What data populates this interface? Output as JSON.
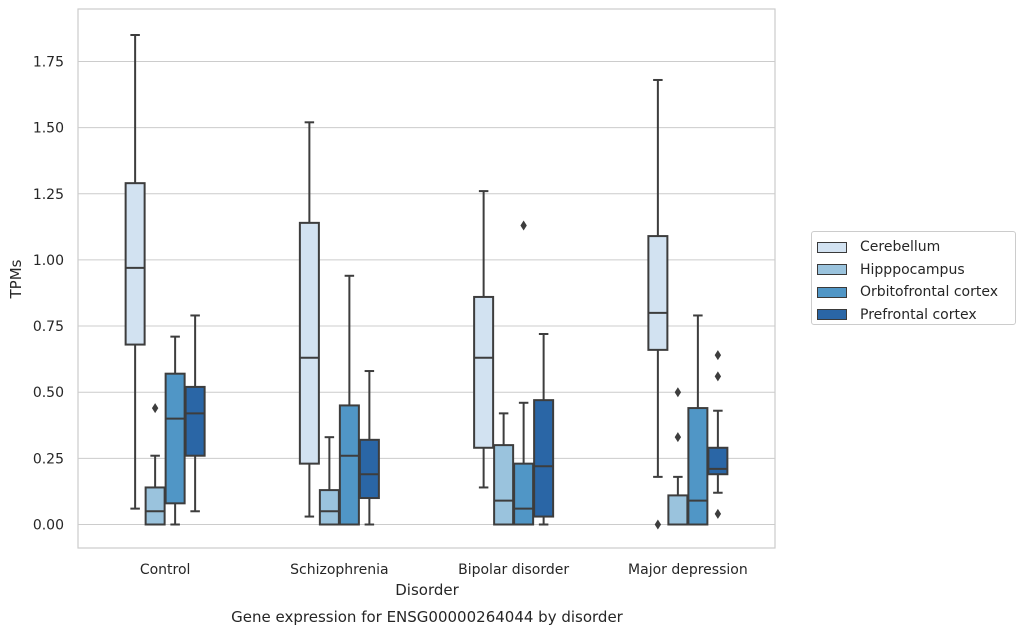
{
  "chart_data": {
    "type": "boxplot",
    "title": "Gene expression for ENSG00000264044 by disorder",
    "xlabel": "Disorder",
    "ylabel": "TPMs",
    "ylim": [
      -0.09,
      1.95
    ],
    "yticks": [
      0.0,
      0.25,
      0.5,
      0.75,
      1.0,
      1.25,
      1.5,
      1.75
    ],
    "ytick_labels": [
      "0.00",
      "0.25",
      "0.50",
      "0.75",
      "1.00",
      "1.25",
      "1.50",
      "1.75"
    ],
    "grid": "horizontal",
    "legend_position": "right",
    "categories": [
      "Control",
      "Schizophrenia",
      "Bipolar disorder",
      "Major depression"
    ],
    "series": [
      {
        "name": "Cerebellum",
        "color": "#d2e2f1",
        "boxes": [
          {
            "whislo": 0.06,
            "q1": 0.68,
            "med": 0.97,
            "q3": 1.29,
            "whishi": 1.85,
            "fliers": []
          },
          {
            "whislo": 0.03,
            "q1": 0.23,
            "med": 0.63,
            "q3": 1.14,
            "whishi": 1.52,
            "fliers": []
          },
          {
            "whislo": 0.14,
            "q1": 0.29,
            "med": 0.63,
            "q3": 0.86,
            "whishi": 1.26,
            "fliers": []
          },
          {
            "whislo": 0.18,
            "q1": 0.66,
            "med": 0.8,
            "q3": 1.09,
            "whishi": 1.68,
            "fliers": [
              0.0
            ]
          }
        ]
      },
      {
        "name": "Hipppocampus",
        "color": "#9ac3dd",
        "boxes": [
          {
            "whislo": 0.0,
            "q1": 0.0,
            "med": 0.05,
            "q3": 0.14,
            "whishi": 0.26,
            "fliers": [
              0.44
            ]
          },
          {
            "whislo": 0.0,
            "q1": 0.0,
            "med": 0.05,
            "q3": 0.13,
            "whishi": 0.33,
            "fliers": []
          },
          {
            "whislo": 0.0,
            "q1": 0.0,
            "med": 0.09,
            "q3": 0.3,
            "whishi": 0.42,
            "fliers": []
          },
          {
            "whislo": 0.0,
            "q1": 0.0,
            "med": 0.0,
            "q3": 0.11,
            "whishi": 0.18,
            "fliers": [
              0.33,
              0.5
            ]
          }
        ]
      },
      {
        "name": "Orbitofrontal cortex",
        "color": "#5096c6",
        "boxes": [
          {
            "whislo": 0.0,
            "q1": 0.08,
            "med": 0.4,
            "q3": 0.57,
            "whishi": 0.71,
            "fliers": []
          },
          {
            "whislo": 0.0,
            "q1": 0.0,
            "med": 0.26,
            "q3": 0.45,
            "whishi": 0.94,
            "fliers": []
          },
          {
            "whislo": 0.0,
            "q1": 0.0,
            "med": 0.06,
            "q3": 0.23,
            "whishi": 0.46,
            "fliers": [
              1.13
            ]
          },
          {
            "whislo": 0.0,
            "q1": 0.0,
            "med": 0.09,
            "q3": 0.44,
            "whishi": 0.79,
            "fliers": []
          }
        ]
      },
      {
        "name": "Prefrontal cortex",
        "color": "#2a66a6",
        "boxes": [
          {
            "whislo": 0.05,
            "q1": 0.26,
            "med": 0.42,
            "q3": 0.52,
            "whishi": 0.79,
            "fliers": []
          },
          {
            "whislo": 0.0,
            "q1": 0.1,
            "med": 0.19,
            "q3": 0.32,
            "whishi": 0.58,
            "fliers": []
          },
          {
            "whislo": 0.0,
            "q1": 0.03,
            "med": 0.22,
            "q3": 0.47,
            "whishi": 0.72,
            "fliers": []
          },
          {
            "whislo": 0.12,
            "q1": 0.19,
            "med": 0.21,
            "q3": 0.29,
            "whishi": 0.43,
            "fliers": [
              0.04,
              0.56,
              0.64
            ]
          }
        ]
      }
    ]
  }
}
